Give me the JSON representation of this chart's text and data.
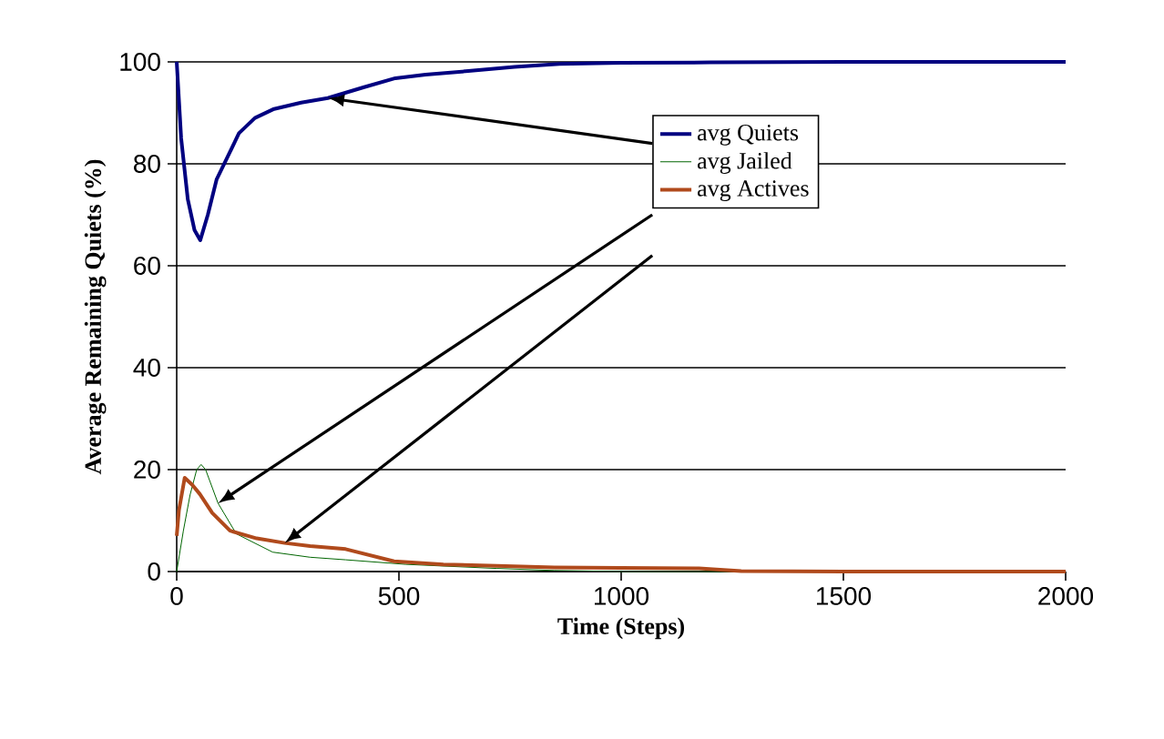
{
  "chart_data": {
    "type": "line",
    "xlabel": "Time (Steps)",
    "ylabel": "Average Remaining Quiets (%)",
    "xlim": [
      0,
      2000
    ],
    "ylim": [
      0,
      100
    ],
    "xticks": [
      0,
      500,
      1000,
      1500,
      2000
    ],
    "yticks": [
      0,
      20,
      40,
      60,
      80,
      100
    ],
    "grid": "y",
    "legend": "top right",
    "marker": "none",
    "line_style": "solid",
    "series": [
      {
        "name": "avg Quiets",
        "color": "#000080",
        "x": [
          0,
          10,
          25,
          40,
          53,
          70,
          90,
          107,
          140,
          176,
          217,
          280,
          340,
          420,
          492,
          560,
          656,
          760,
          861,
          1000,
          1200,
          1500,
          2000
        ],
        "values": [
          100,
          85,
          73,
          67,
          65,
          70,
          77,
          80,
          86,
          89,
          90.7,
          92,
          92.9,
          95,
          96.8,
          97.5,
          98.2,
          99,
          99.6,
          99.8,
          99.9,
          100,
          100
        ]
      },
      {
        "name": "avg Jailed",
        "color": "#006400",
        "x": [
          0,
          15,
          30,
          45,
          55,
          65,
          93,
          134,
          216,
          300,
          380,
          516,
          721,
          850,
          1000,
          1500,
          2000
        ],
        "values": [
          0,
          8,
          15,
          20,
          21,
          20,
          13.4,
          7.4,
          3.8,
          2.8,
          2.3,
          1.4,
          0.6,
          0.2,
          0,
          0,
          0
        ]
      },
      {
        "name": "avg Actives",
        "color": "#b04a1c",
        "x": [
          0,
          5,
          18,
          35,
          52,
          80,
          120,
          180,
          243,
          300,
          380,
          489,
          600,
          721,
          850,
          1000,
          1175,
          1270,
          1500,
          2000
        ],
        "values": [
          7,
          12,
          18.4,
          17,
          15.2,
          11.5,
          8,
          6.5,
          5.6,
          5,
          4.4,
          2,
          1.4,
          1.1,
          0.8,
          0.7,
          0.6,
          0.1,
          0,
          0
        ]
      }
    ]
  }
}
